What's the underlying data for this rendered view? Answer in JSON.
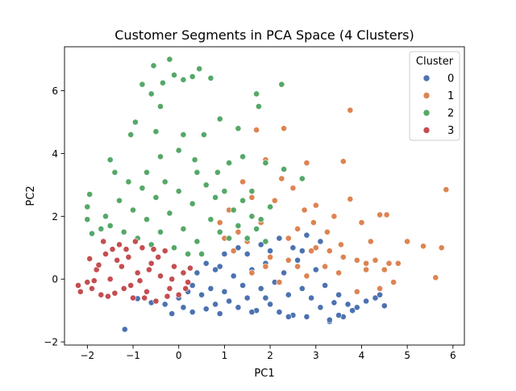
{
  "chart_data": {
    "type": "scatter",
    "title": "Customer Segments in PCA Space (4 Clusters)",
    "xlabel": "PC1",
    "ylabel": "PC2",
    "xlim": [
      -2.5,
      6.25
    ],
    "ylim": [
      -2.1,
      7.4
    ],
    "xticks": [
      "−2",
      "−1",
      "0",
      "1",
      "2",
      "3",
      "4",
      "5",
      "6"
    ],
    "yticks": [
      "−2",
      "0",
      "2",
      "4",
      "6"
    ],
    "grid": false,
    "legend": {
      "title": "Cluster",
      "placement": "top-right"
    },
    "series": [
      {
        "name": "0",
        "color": "#4c72b0",
        "points": [
          [
            -1.18,
            -1.6
          ],
          [
            -0.9,
            -0.62
          ],
          [
            -0.6,
            -0.75
          ],
          [
            -0.3,
            -0.8
          ],
          [
            -0.15,
            -1.1
          ],
          [
            0.0,
            -0.6
          ],
          [
            0.1,
            -0.9
          ],
          [
            0.2,
            -0.4
          ],
          [
            0.3,
            -1.05
          ],
          [
            0.5,
            -0.5
          ],
          [
            0.6,
            -0.95
          ],
          [
            0.7,
            -0.3
          ],
          [
            0.8,
            -0.8
          ],
          [
            0.9,
            -1.1
          ],
          [
            1.0,
            -0.4
          ],
          [
            1.1,
            -0.7
          ],
          [
            1.2,
            0.1
          ],
          [
            1.3,
            -0.9
          ],
          [
            1.4,
            -0.2
          ],
          [
            1.5,
            -0.6
          ],
          [
            1.6,
            0.3
          ],
          [
            1.7,
            -1.0
          ],
          [
            1.8,
            -0.3
          ],
          [
            1.9,
            0.5
          ],
          [
            2.0,
            -0.8
          ],
          [
            2.1,
            -0.1
          ],
          [
            2.2,
            -1.05
          ],
          [
            2.3,
            0.2
          ],
          [
            2.4,
            -0.5
          ],
          [
            2.5,
            -1.15
          ],
          [
            2.6,
            0.6
          ],
          [
            2.7,
            -0.3
          ],
          [
            2.8,
            -1.2
          ],
          [
            2.9,
            -0.6
          ],
          [
            3.0,
            0.3
          ],
          [
            3.1,
            -0.9
          ],
          [
            3.2,
            -0.2
          ],
          [
            3.3,
            -1.35
          ],
          [
            3.4,
            -0.75
          ],
          [
            3.5,
            -0.5
          ],
          [
            3.6,
            -1.2
          ],
          [
            3.7,
            -0.8
          ],
          [
            3.9,
            -0.9
          ],
          [
            4.1,
            -0.7
          ],
          [
            4.3,
            -0.6
          ],
          [
            4.4,
            -0.5
          ],
          [
            4.5,
            -0.85
          ],
          [
            0.4,
            0.2
          ],
          [
            0.9,
            0.4
          ],
          [
            1.5,
            0.8
          ],
          [
            1.8,
            1.1
          ],
          [
            2.2,
            1.3
          ],
          [
            2.5,
            1.0
          ],
          [
            2.8,
            1.4
          ],
          [
            3.1,
            1.2
          ],
          [
            1.0,
            0.8
          ],
          [
            0.6,
            0.5
          ],
          [
            1.3,
            1.0
          ],
          [
            2.0,
            0.9
          ],
          [
            3.3,
            -1.3
          ],
          [
            3.5,
            -1.15
          ],
          [
            3.8,
            -1.0
          ],
          [
            1.6,
            -1.05
          ],
          [
            2.4,
            -1.2
          ],
          [
            0.3,
            -0.2
          ],
          [
            1.9,
            -0.6
          ],
          [
            2.7,
            0.9
          ],
          [
            0.8,
            0.3
          ]
        ]
      },
      {
        "name": "1",
        "color": "#dd8452",
        "points": [
          [
            5.85,
            2.85
          ],
          [
            5.75,
            1.0
          ],
          [
            5.62,
            0.05
          ],
          [
            5.35,
            1.05
          ],
          [
            5.0,
            1.2
          ],
          [
            4.8,
            0.5
          ],
          [
            4.55,
            2.05
          ],
          [
            4.4,
            2.05
          ],
          [
            4.3,
            0.6
          ],
          [
            4.2,
            1.2
          ],
          [
            4.1,
            0.3
          ],
          [
            4.0,
            1.8
          ],
          [
            3.9,
            0.6
          ],
          [
            3.75,
            5.38
          ],
          [
            3.75,
            2.55
          ],
          [
            3.6,
            3.75
          ],
          [
            3.55,
            1.1
          ],
          [
            3.5,
            0.2
          ],
          [
            3.4,
            2.0
          ],
          [
            3.25,
            1.5
          ],
          [
            3.2,
            0.4
          ],
          [
            3.0,
            2.35
          ],
          [
            2.95,
            1.8
          ],
          [
            2.9,
            0.9
          ],
          [
            2.8,
            3.7
          ],
          [
            2.75,
            2.2
          ],
          [
            2.6,
            0.4
          ],
          [
            2.5,
            2.9
          ],
          [
            2.4,
            1.3
          ],
          [
            2.3,
            4.8
          ],
          [
            2.25,
            3.2
          ],
          [
            2.1,
            2.5
          ],
          [
            2.0,
            0.7
          ],
          [
            1.9,
            3.8
          ],
          [
            1.8,
            1.8
          ],
          [
            1.7,
            4.75
          ],
          [
            1.6,
            2.6
          ],
          [
            1.5,
            1.2
          ],
          [
            1.4,
            3.1
          ],
          [
            1.3,
            1.5
          ],
          [
            1.2,
            0.9
          ],
          [
            1.1,
            2.2
          ],
          [
            1.0,
            1.3
          ],
          [
            0.9,
            1.8
          ],
          [
            1.6,
            0.2
          ],
          [
            2.2,
            -0.1
          ],
          [
            2.6,
            1.6
          ],
          [
            3.3,
            0.9
          ],
          [
            3.6,
            0.7
          ],
          [
            4.1,
            0.5
          ],
          [
            4.5,
            0.3
          ],
          [
            4.6,
            0.5
          ],
          [
            4.7,
            -0.1
          ],
          [
            4.4,
            -0.3
          ],
          [
            3.9,
            -0.4
          ],
          [
            2.8,
            0.1
          ],
          [
            3.0,
            1.0
          ],
          [
            1.9,
            0.4
          ],
          [
            2.4,
            0.6
          ]
        ]
      },
      {
        "name": "2",
        "color": "#55a868",
        "points": [
          [
            -0.2,
            7.0
          ],
          [
            -0.55,
            6.8
          ],
          [
            -0.35,
            6.25
          ],
          [
            -0.8,
            6.2
          ],
          [
            -0.6,
            5.9
          ],
          [
            -0.1,
            6.5
          ],
          [
            0.3,
            6.45
          ],
          [
            0.45,
            6.7
          ],
          [
            0.7,
            6.4
          ],
          [
            0.1,
            6.35
          ],
          [
            -0.4,
            5.5
          ],
          [
            1.7,
            5.9
          ],
          [
            1.75,
            5.5
          ],
          [
            2.25,
            6.2
          ],
          [
            0.9,
            5.1
          ],
          [
            -0.95,
            5.0
          ],
          [
            -1.05,
            4.6
          ],
          [
            -1.5,
            3.8
          ],
          [
            -0.5,
            4.7
          ],
          [
            0.1,
            4.6
          ],
          [
            0.55,
            4.6
          ],
          [
            1.3,
            4.8
          ],
          [
            0.0,
            4.1
          ],
          [
            -0.4,
            3.9
          ],
          [
            0.35,
            3.8
          ],
          [
            0.85,
            3.4
          ],
          [
            1.4,
            3.9
          ],
          [
            1.9,
            3.7
          ],
          [
            2.3,
            3.5
          ],
          [
            2.7,
            3.2
          ],
          [
            -1.95,
            2.7
          ],
          [
            -2.0,
            2.3
          ],
          [
            -2.0,
            1.9
          ],
          [
            -1.9,
            1.45
          ],
          [
            -1.7,
            1.6
          ],
          [
            -1.5,
            1.7
          ],
          [
            -1.3,
            2.5
          ],
          [
            -1.1,
            3.1
          ],
          [
            -1.0,
            2.2
          ],
          [
            -0.8,
            2.9
          ],
          [
            -0.7,
            1.9
          ],
          [
            -0.5,
            2.6
          ],
          [
            -0.3,
            3.1
          ],
          [
            -0.2,
            2.1
          ],
          [
            0.0,
            2.8
          ],
          [
            0.1,
            1.6
          ],
          [
            0.3,
            2.4
          ],
          [
            0.4,
            1.2
          ],
          [
            0.6,
            3.0
          ],
          [
            0.7,
            1.9
          ],
          [
            0.8,
            2.6
          ],
          [
            0.9,
            1.5
          ],
          [
            1.0,
            2.8
          ],
          [
            1.1,
            1.3
          ],
          [
            1.2,
            2.2
          ],
          [
            1.3,
            1.7
          ],
          [
            1.4,
            2.5
          ],
          [
            1.5,
            1.3
          ],
          [
            1.6,
            2.0
          ],
          [
            1.7,
            1.6
          ],
          [
            1.8,
            1.9
          ],
          [
            1.9,
            1.2
          ],
          [
            -1.6,
            2.0
          ],
          [
            -1.2,
            1.5
          ],
          [
            -0.9,
            1.3
          ],
          [
            -0.6,
            1.1
          ],
          [
            -0.4,
            1.5
          ],
          [
            -0.1,
            1.0
          ],
          [
            0.2,
            0.8
          ],
          [
            0.5,
            0.8
          ],
          [
            -0.7,
            3.4
          ],
          [
            -1.4,
            3.4
          ],
          [
            0.4,
            3.4
          ],
          [
            1.1,
            3.7
          ],
          [
            1.6,
            2.8
          ],
          [
            2.0,
            2.3
          ]
        ]
      },
      {
        "name": "3",
        "color": "#c44e52",
        "points": [
          [
            -2.2,
            -0.2
          ],
          [
            -2.15,
            -0.4
          ],
          [
            -2.0,
            -0.1
          ],
          [
            -1.95,
            0.65
          ],
          [
            -1.9,
            -0.3
          ],
          [
            -1.8,
            0.3
          ],
          [
            -1.7,
            -0.5
          ],
          [
            -1.6,
            0.8
          ],
          [
            -1.5,
            0.0
          ],
          [
            -1.4,
            -0.45
          ],
          [
            -1.3,
            1.1
          ],
          [
            -1.25,
            0.4
          ],
          [
            -1.2,
            -0.3
          ],
          [
            -1.1,
            0.7
          ],
          [
            -1.0,
            -0.6
          ],
          [
            -0.9,
            0.2
          ],
          [
            -0.8,
            1.0
          ],
          [
            -0.7,
            -0.4
          ],
          [
            -0.6,
            0.5
          ],
          [
            -0.5,
            -0.7
          ],
          [
            -0.4,
            0.1
          ],
          [
            -0.3,
            0.9
          ],
          [
            -0.2,
            -0.3
          ],
          [
            -0.1,
            0.4
          ],
          [
            0.0,
            -0.5
          ],
          [
            0.1,
            0.2
          ],
          [
            0.2,
            -0.1
          ],
          [
            -1.65,
            1.2
          ],
          [
            -1.45,
            0.95
          ],
          [
            -0.95,
            1.2
          ],
          [
            -0.45,
            0.7
          ],
          [
            -1.85,
            -0.05
          ],
          [
            -1.55,
            -0.55
          ],
          [
            -1.05,
            -0.2
          ],
          [
            -0.75,
            -0.6
          ],
          [
            -0.25,
            -0.55
          ],
          [
            -1.75,
            0.45
          ],
          [
            -1.35,
            0.6
          ],
          [
            -0.65,
            0.3
          ],
          [
            -0.15,
            0.0
          ],
          [
            0.15,
            -0.3
          ],
          [
            0.25,
            0.35
          ],
          [
            -1.15,
            0.95
          ],
          [
            -0.85,
            -0.05
          ],
          [
            -0.55,
            0.95
          ]
        ]
      }
    ]
  }
}
